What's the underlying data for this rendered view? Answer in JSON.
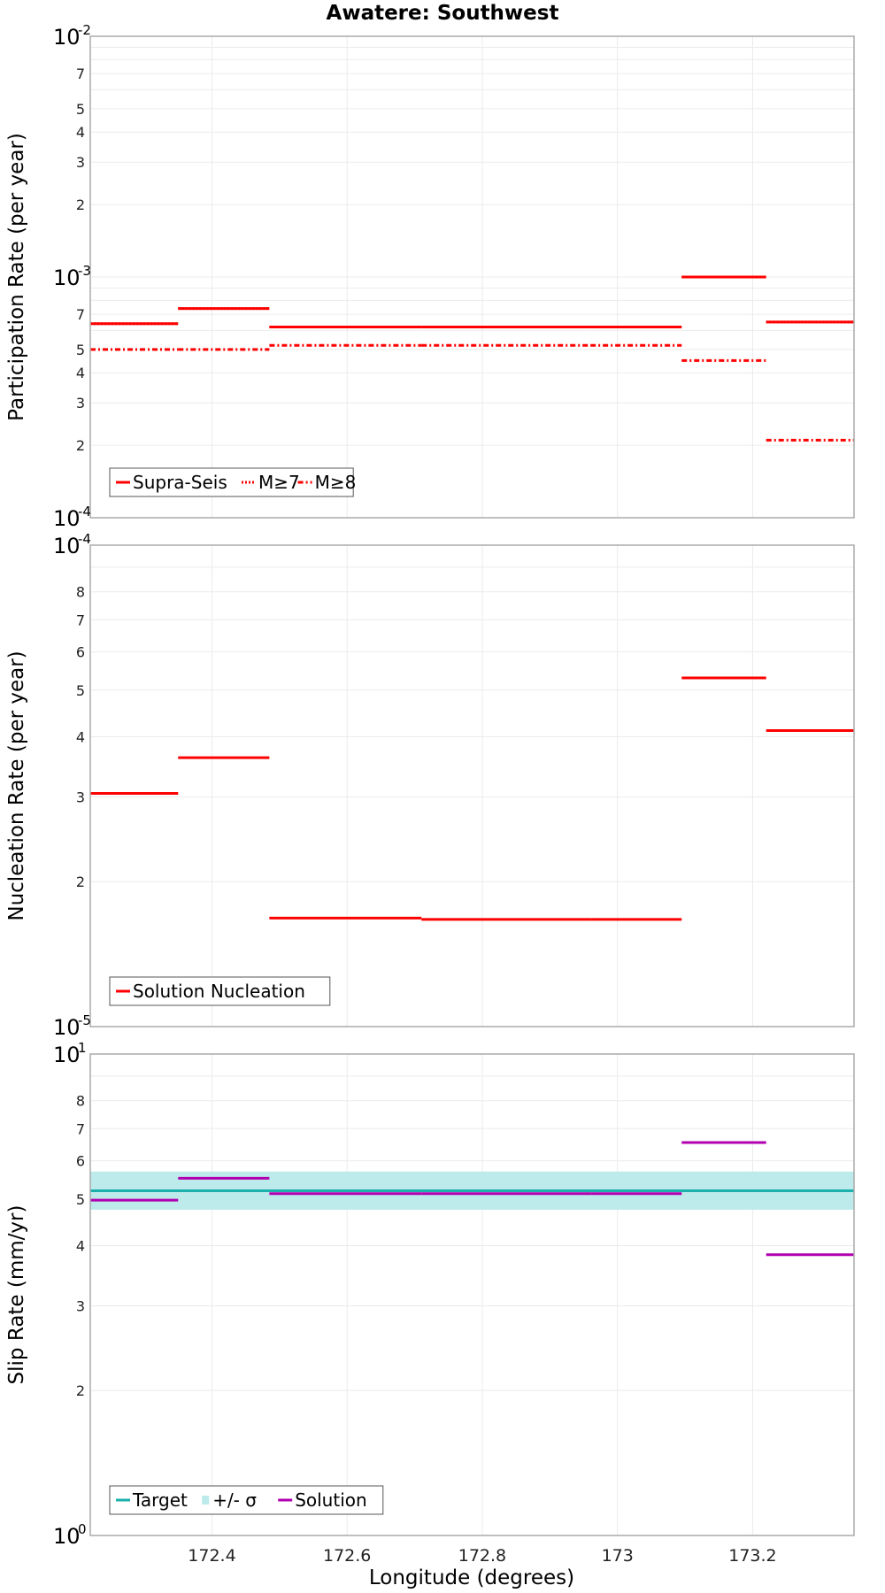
{
  "title": "Awatere: Southwest",
  "xlabel": "Longitude (degrees)",
  "xlim": [
    172.22,
    173.35
  ],
  "xticks": [
    172.4,
    172.6,
    172.8,
    173,
    173.2
  ],
  "xtick_labels": [
    "172.4",
    "172.6",
    "172.8",
    "173",
    "173.2"
  ],
  "segments_x": [
    [
      172.22,
      172.35
    ],
    [
      172.35,
      172.485
    ],
    [
      172.485,
      172.71
    ],
    [
      172.71,
      172.96
    ],
    [
      172.96,
      173.095
    ],
    [
      173.095,
      173.22
    ],
    [
      173.22,
      173.35
    ]
  ],
  "colors": {
    "solution_red": "#ff0000",
    "target": "#1ab0ab",
    "band": "#bdeaea",
    "slip_solution": "#b000b0",
    "grid": "#ebebeb",
    "frame": "#aaaaaa"
  },
  "chart_data": [
    {
      "type": "line",
      "name": "participation",
      "ylabel": "Participation Rate (per year)",
      "yscale": "log",
      "ylim": [
        0.0001,
        0.01
      ],
      "major_labels": [
        {
          "mantissa": "10",
          "exp": "-4",
          "value": 0.0001
        },
        {
          "mantissa": "10",
          "exp": "-3",
          "value": 0.001
        },
        {
          "mantissa": "10",
          "exp": "-2",
          "value": 0.01
        }
      ],
      "minor_labels": [
        "2",
        "3",
        "4",
        "5",
        "7",
        "2",
        "3",
        "4",
        "5",
        "7"
      ],
      "minor_values": [
        0.0002,
        0.0003,
        0.0004,
        0.0005,
        0.0007,
        0.002,
        0.003,
        0.004,
        0.005,
        0.007
      ],
      "series": [
        {
          "name": "Supra-Seis",
          "style": "solid",
          "values": [
            0.00064,
            0.00074,
            0.00062,
            0.00062,
            0.00062,
            0.001,
            0.00065
          ]
        },
        {
          "name": "M≥7",
          "style": "dotted",
          "values": [
            0.00064,
            0.00074,
            0.00062,
            0.00062,
            0.00062,
            0.001,
            0.00065
          ]
        },
        {
          "name": "M≥8",
          "style": "dashdot",
          "values": [
            0.0005,
            0.0005,
            0.00052,
            0.00052,
            0.00052,
            0.00045,
            0.00021
          ]
        }
      ],
      "legend": {
        "position": "bottom-left",
        "items": [
          "Supra-Seis",
          "M≥7",
          "M≥8"
        ]
      }
    },
    {
      "type": "line",
      "name": "nucleation",
      "ylabel": "Nucleation Rate (per year)",
      "yscale": "log",
      "ylim": [
        1e-05,
        0.0001
      ],
      "major_labels": [
        {
          "mantissa": "10",
          "exp": "-5",
          "value": 1e-05
        },
        {
          "mantissa": "10",
          "exp": "-4",
          "value": 0.0001
        }
      ],
      "minor_labels": [
        "2",
        "3",
        "4",
        "5",
        "6",
        "7",
        "8"
      ],
      "minor_values": [
        2e-05,
        3e-05,
        4e-05,
        5e-05,
        6e-05,
        7e-05,
        8e-05
      ],
      "series": [
        {
          "name": "Solution Nucleation",
          "style": "solid",
          "values": [
            3.05e-05,
            3.62e-05,
            1.68e-05,
            1.67e-05,
            1.67e-05,
            5.3e-05,
            4.12e-05
          ]
        }
      ],
      "legend": {
        "position": "bottom-left",
        "items": [
          "Solution Nucleation"
        ]
      }
    },
    {
      "type": "line",
      "name": "slip",
      "ylabel": "Slip Rate (mm/yr)",
      "yscale": "log",
      "ylim": [
        1,
        10
      ],
      "major_labels": [
        {
          "mantissa": "10",
          "exp": "0",
          "value": 1
        },
        {
          "mantissa": "10",
          "exp": "1",
          "value": 10
        }
      ],
      "minor_labels": [
        "2",
        "3",
        "4",
        "5",
        "6",
        "7",
        "8"
      ],
      "minor_values": [
        2,
        3,
        4,
        5,
        6,
        7,
        8
      ],
      "target": 5.2,
      "band": [
        4.75,
        5.7
      ],
      "series": [
        {
          "name": "Solution",
          "style": "solid",
          "values": [
            4.97,
            5.52,
            5.13,
            5.13,
            5.13,
            6.55,
            3.83
          ]
        }
      ],
      "legend": {
        "position": "bottom-left",
        "items": [
          "Target",
          "+/- σ",
          "Solution"
        ]
      }
    }
  ]
}
